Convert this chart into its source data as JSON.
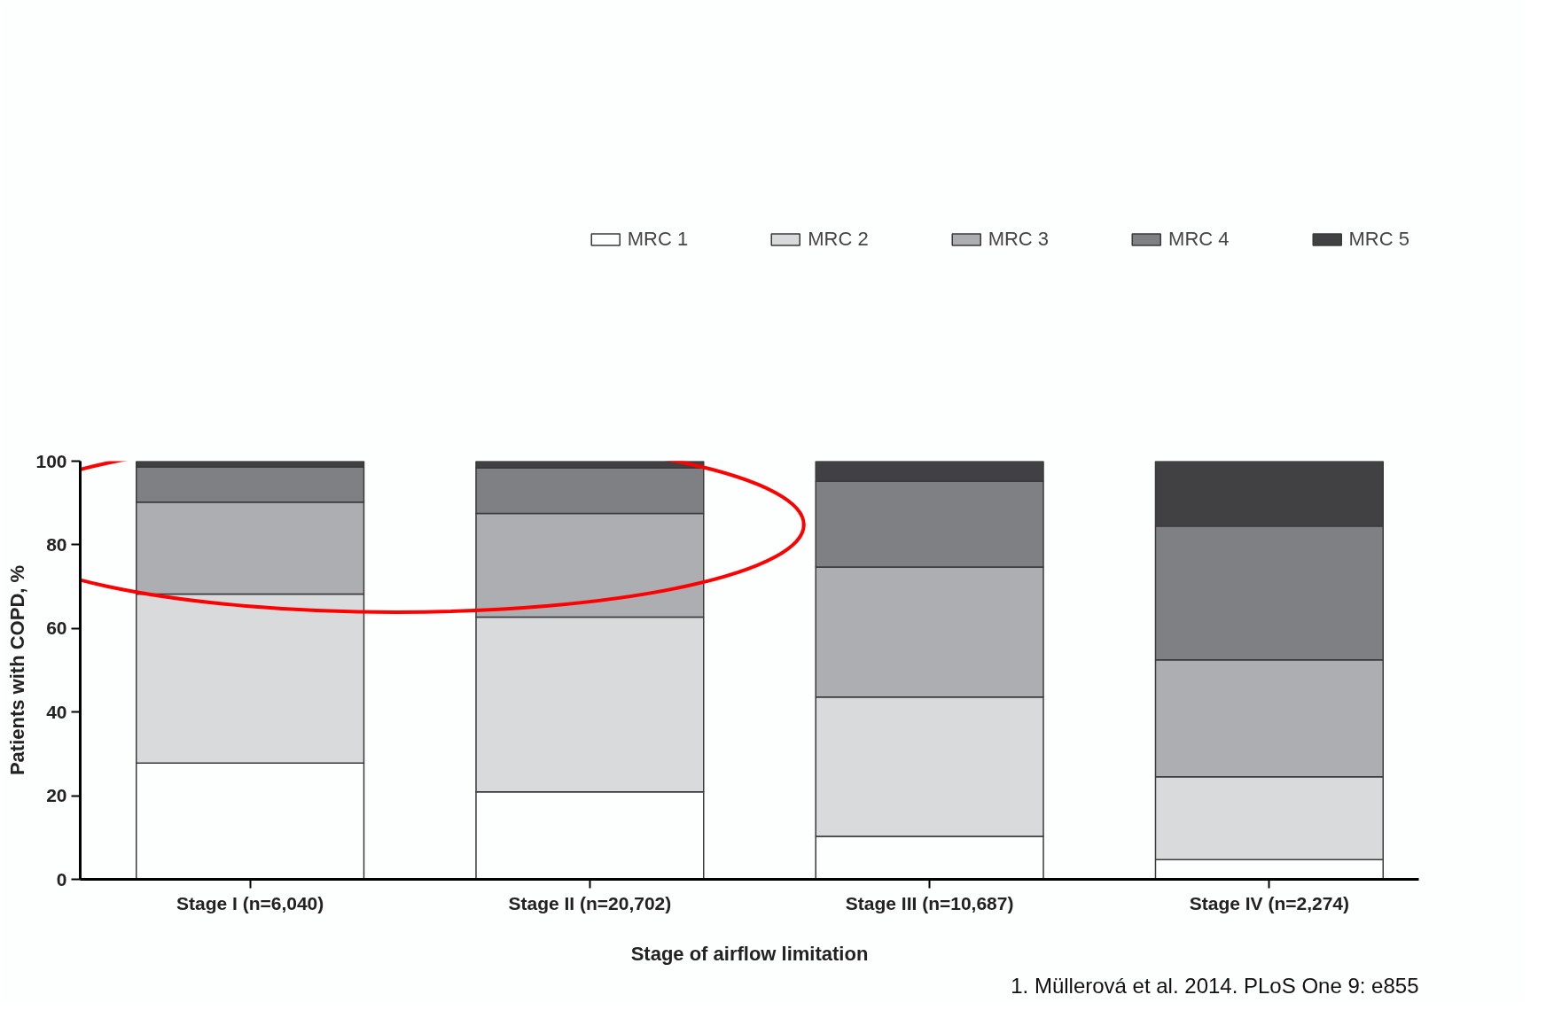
{
  "chart_data": {
    "type": "bar",
    "stacked": true,
    "categories": [
      "Stage I (n=6,040)",
      "Stage II (n=20,702)",
      "Stage III (n=10,687)",
      "Stage IV (n=2,274)"
    ],
    "series": [
      {
        "name": "MRC 1",
        "color": "#fdfefe",
        "values": [
          27.8,
          20.9,
          10.3,
          4.7
        ]
      },
      {
        "name": "MRC 2",
        "color": "#d9dadc",
        "values": [
          40.4,
          41.8,
          33.3,
          19.8
        ]
      },
      {
        "name": "MRC 3",
        "color": "#adaeb1",
        "values": [
          22.0,
          24.8,
          31.1,
          28.0
        ]
      },
      {
        "name": "MRC 4",
        "color": "#7f8083",
        "values": [
          8.4,
          10.9,
          20.5,
          32.0
        ]
      },
      {
        "name": "MRC 5",
        "color": "#414143",
        "values": [
          1.4,
          1.6,
          4.8,
          15.5
        ]
      }
    ],
    "xlabel": "Stage of airflow limitation",
    "ylabel": "Patients with COPD, %",
    "ylim": [
      0,
      100
    ],
    "yticks": [
      0,
      20,
      40,
      60,
      80,
      100
    ],
    "grid": false,
    "legend": "top",
    "annotations": [
      "1. Müllerová et al. 2014. PLoS One 9: e855"
    ]
  }
}
